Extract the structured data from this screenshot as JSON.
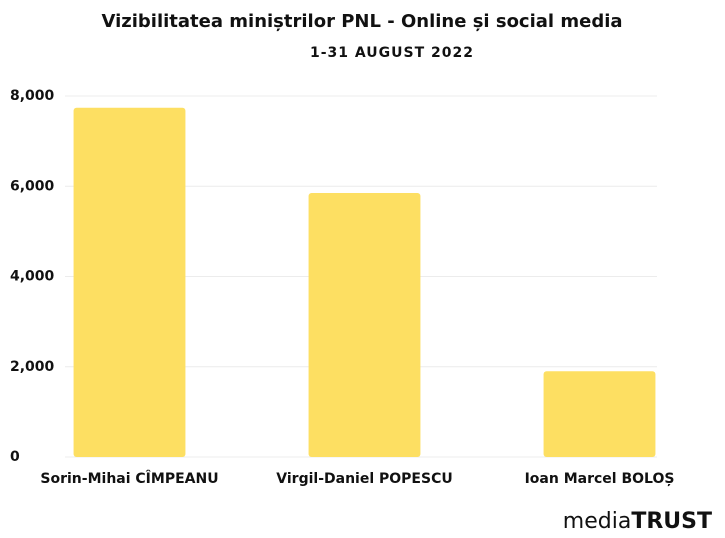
{
  "chart_data": {
    "type": "bar",
    "title": "Vizibilitatea miniștrilor PNL - Online și social media",
    "subtitle": "1-31 AUGUST 2022",
    "categories": [
      "Sorin-Mihai CÎMPEANU",
      "Virgil-Daniel POPESCU",
      "Ioan Marcel BOLOȘ"
    ],
    "values": [
      7740,
      5850,
      1900
    ],
    "color": "#fddf62",
    "ylim": [
      0,
      8000
    ],
    "yticks": [
      0,
      {
        "value": 2000,
        "label": "2,000"
      },
      {
        "value": 4000,
        "label": "4,000"
      },
      {
        "value": 6000,
        "label": "6,000"
      },
      {
        "value": 8000,
        "label": "8,000"
      }
    ],
    "grid": true
  },
  "logo": {
    "prefix": "media",
    "suffix": "TRUST"
  }
}
